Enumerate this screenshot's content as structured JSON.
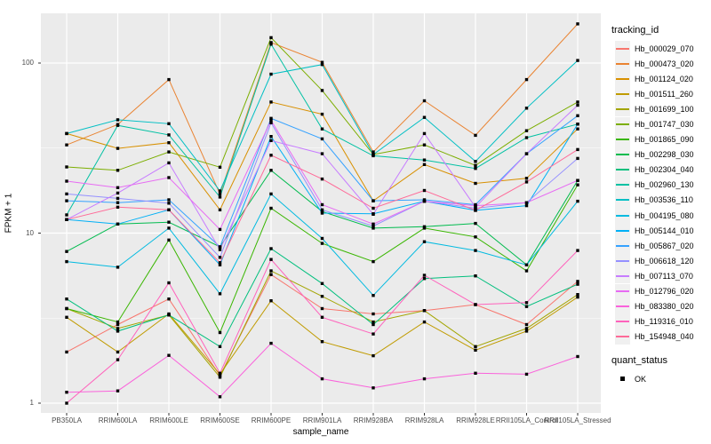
{
  "colors": {
    "panel": "#ebebeb",
    "gridline": "#ffffff",
    "tick": "#333333",
    "tick_label": "#4d4d4d",
    "marker": "#000000"
  },
  "chart_data": {
    "type": "line",
    "title": "",
    "xlabel": "sample_name",
    "ylabel": "FPKM + 1",
    "y_scale": "log10",
    "y_ticks": [
      1,
      10,
      100
    ],
    "ylim": [
      0.87,
      196
    ],
    "grid": "major-and-minor-white-on-grey",
    "marker": "black-square",
    "legend": {
      "title": "tracking_id",
      "position": "right"
    },
    "legend2": {
      "title": "quant_status",
      "items": [
        "OK"
      ]
    },
    "categories": [
      "PB350LA",
      "RRIM600LA",
      "RRIM600LE",
      "RRIM600SE",
      "RRIM600PE",
      "RRIM901LA",
      "RRIM928BA",
      "RRIM928LA",
      "RRIM928LE",
      "RRII105LA_Control",
      "RRII105LA_Stressed"
    ],
    "series": [
      {
        "name": "Hb_000029_070",
        "color": "#F8766D",
        "values": [
          2.0,
          2.9,
          4.1,
          1.45,
          5.7,
          3.6,
          3.35,
          3.5,
          3.8,
          2.9,
          5.2
        ]
      },
      {
        "name": "Hb_000473_020",
        "color": "#EA8331",
        "values": [
          33,
          43.5,
          80,
          17,
          132,
          101,
          30,
          60,
          37.6,
          80,
          170
        ]
      },
      {
        "name": "Hb_001124_020",
        "color": "#D89000",
        "values": [
          38.5,
          31.5,
          34,
          13.7,
          59,
          50,
          15.5,
          25.3,
          19.6,
          21,
          41
        ]
      },
      {
        "name": "Hb_001511_260",
        "color": "#C09B00",
        "values": [
          3.2,
          2.0,
          3.35,
          1.48,
          4.0,
          2.3,
          1.9,
          3.0,
          2.05,
          2.65,
          4.2
        ]
      },
      {
        "name": "Hb_001699_100",
        "color": "#A3A500",
        "values": [
          3.6,
          2.75,
          3.3,
          1.42,
          6.0,
          4.25,
          3.0,
          3.5,
          2.15,
          2.75,
          4.35
        ]
      },
      {
        "name": "Hb_001747_030",
        "color": "#7CAE00",
        "values": [
          24.5,
          23.4,
          30,
          24.4,
          141,
          69,
          29,
          33,
          25,
          40,
          59
        ]
      },
      {
        "name": "Hb_001865_090",
        "color": "#39B600",
        "values": [
          3.6,
          3.0,
          9.1,
          2.6,
          14,
          8.7,
          6.8,
          10.7,
          9.5,
          6.0,
          19.2
        ]
      },
      {
        "name": "Hb_002298_030",
        "color": "#00BB4E",
        "values": [
          7.8,
          11.3,
          11.6,
          8.3,
          23.4,
          13.4,
          10.7,
          10.9,
          11.4,
          6.5,
          20.4
        ]
      },
      {
        "name": "Hb_002304_040",
        "color": "#00BF7D",
        "values": [
          4.1,
          2.65,
          3.3,
          2.15,
          8.1,
          5.05,
          2.9,
          5.4,
          5.6,
          3.7,
          5.0
        ]
      },
      {
        "name": "Hb_002960_130",
        "color": "#00C1A3",
        "values": [
          12.8,
          43,
          37.8,
          16.3,
          129,
          41,
          28.5,
          26.9,
          24,
          36.4,
          43.7
        ]
      },
      {
        "name": "Hb_003536_110",
        "color": "#00BFC4",
        "values": [
          38.5,
          46.4,
          44,
          17.7,
          86,
          98,
          29,
          47.9,
          26.4,
          54.3,
          103.5
        ]
      },
      {
        "name": "Hb_004195_080",
        "color": "#00BAE0",
        "values": [
          6.8,
          6.3,
          10.7,
          4.4,
          17,
          9.3,
          4.3,
          8.9,
          7.9,
          6.5,
          15.4
        ]
      },
      {
        "name": "Hb_005144_010",
        "color": "#00B0F6",
        "values": [
          12,
          11.3,
          13.7,
          6.5,
          37,
          13.1,
          13,
          15.4,
          13.6,
          14.5,
          43.7
        ]
      },
      {
        "name": "Hb_005867_020",
        "color": "#35A2FF",
        "values": [
          15.5,
          15.1,
          15.7,
          8.3,
          47.3,
          35.8,
          15.5,
          15.7,
          14.7,
          29.3,
          49
        ]
      },
      {
        "name": "Hb_006618_120",
        "color": "#9590FF",
        "values": [
          17,
          16,
          15,
          7.2,
          44.5,
          13.7,
          11,
          15.4,
          14,
          15.1,
          27.5
        ]
      },
      {
        "name": "Hb_007113_070",
        "color": "#C77CFF",
        "values": [
          12,
          17.2,
          25.9,
          8.0,
          35,
          29.3,
          12.9,
          38.5,
          14.2,
          29.3,
          56.5
        ]
      },
      {
        "name": "Hb_012796_020",
        "color": "#E76BF3",
        "values": [
          20.2,
          18.5,
          21.2,
          10.5,
          46,
          14.7,
          11.3,
          15.4,
          14.5,
          15.1,
          20.4
        ]
      },
      {
        "name": "Hb_083380_020",
        "color": "#FA62DB",
        "values": [
          1.16,
          1.18,
          1.91,
          1.09,
          2.25,
          1.39,
          1.23,
          1.39,
          1.5,
          1.48,
          1.88
        ]
      },
      {
        "name": "Hb_119316_010",
        "color": "#FF62BC",
        "values": [
          1.0,
          1.8,
          5.1,
          1.5,
          7.0,
          3.2,
          2.55,
          5.65,
          3.8,
          3.9,
          7.9
        ]
      },
      {
        "name": "Hb_154948_040",
        "color": "#FF6A98",
        "values": [
          12,
          14.2,
          13.7,
          6.7,
          28.7,
          20.8,
          14,
          17.8,
          13.6,
          20,
          31
        ]
      }
    ]
  }
}
